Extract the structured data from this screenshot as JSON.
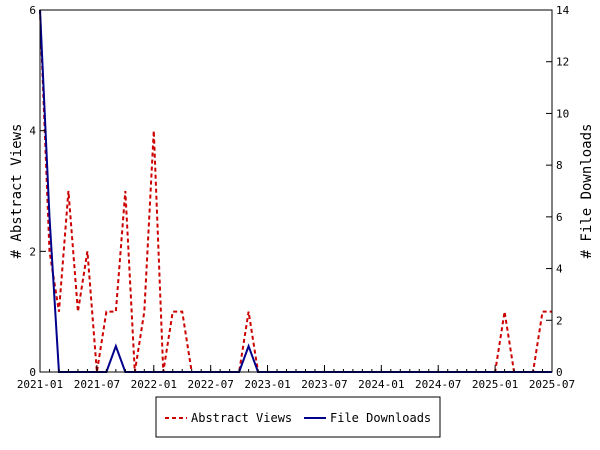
{
  "chart_data": {
    "type": "line",
    "title": "",
    "xlabel": "",
    "ylabel": "# Abstract Views",
    "y2label": "# File Downloads",
    "ylim": [
      0,
      6
    ],
    "y2lim": [
      0,
      14
    ],
    "yticks": [
      0,
      2,
      4,
      6
    ],
    "y2ticks": [
      0,
      2,
      4,
      6,
      8,
      10,
      12,
      14
    ],
    "xlim": [
      "2021-01",
      "2025-07"
    ],
    "xticks": [
      "2021-01",
      "2021-07",
      "2022-01",
      "2022-07",
      "2023-01",
      "2023-07",
      "2024-01",
      "2024-07",
      "2025-01",
      "2025-07"
    ],
    "grid": false,
    "legend_placement": "bottom-center",
    "x": [
      "2021-01",
      "2021-02",
      "2021-03",
      "2021-04",
      "2021-05",
      "2021-06",
      "2021-07",
      "2021-08",
      "2021-09",
      "2021-10",
      "2021-11",
      "2021-12",
      "2022-01",
      "2022-02",
      "2022-03",
      "2022-04",
      "2022-05",
      "2022-06",
      "2022-07",
      "2022-08",
      "2022-09",
      "2022-10",
      "2022-11",
      "2022-12",
      "2023-01",
      "2023-02",
      "2023-03",
      "2023-04",
      "2023-05",
      "2023-06",
      "2023-07",
      "2023-08",
      "2023-09",
      "2023-10",
      "2023-11",
      "2023-12",
      "2024-01",
      "2024-02",
      "2024-03",
      "2024-04",
      "2024-05",
      "2024-06",
      "2024-07",
      "2024-08",
      "2024-09",
      "2024-10",
      "2024-11",
      "2024-12",
      "2025-01",
      "2025-02",
      "2025-03",
      "2025-04",
      "2025-05",
      "2025-06",
      "2025-07"
    ],
    "series": [
      {
        "name": "Abstract Views",
        "axis": "left",
        "color": "#cc0000",
        "dash": "dashed",
        "values": [
          6,
          2,
          1,
          3,
          1,
          2,
          0,
          1,
          1,
          3,
          0,
          1,
          4,
          0,
          1,
          1,
          0,
          0,
          0,
          0,
          0,
          0,
          1,
          0,
          0,
          0,
          0,
          0,
          0,
          0,
          0,
          0,
          0,
          0,
          0,
          0,
          0,
          0,
          0,
          0,
          0,
          0,
          0,
          0,
          0,
          0,
          0,
          0,
          0,
          1,
          0,
          0,
          0,
          1,
          1
        ]
      },
      {
        "name": "File Downloads",
        "axis": "right",
        "color": "#00008b",
        "dash": "solid",
        "values": [
          14,
          6,
          0,
          0,
          0,
          0,
          0,
          0,
          1,
          0,
          0,
          0,
          0,
          0,
          0,
          0,
          0,
          0,
          0,
          0,
          0,
          0,
          1,
          0,
          0,
          0,
          0,
          0,
          0,
          0,
          0,
          0,
          0,
          0,
          0,
          0,
          0,
          0,
          0,
          0,
          0,
          0,
          0,
          0,
          0,
          0,
          0,
          0,
          0,
          0,
          0,
          0,
          0,
          0,
          0
        ]
      }
    ]
  }
}
